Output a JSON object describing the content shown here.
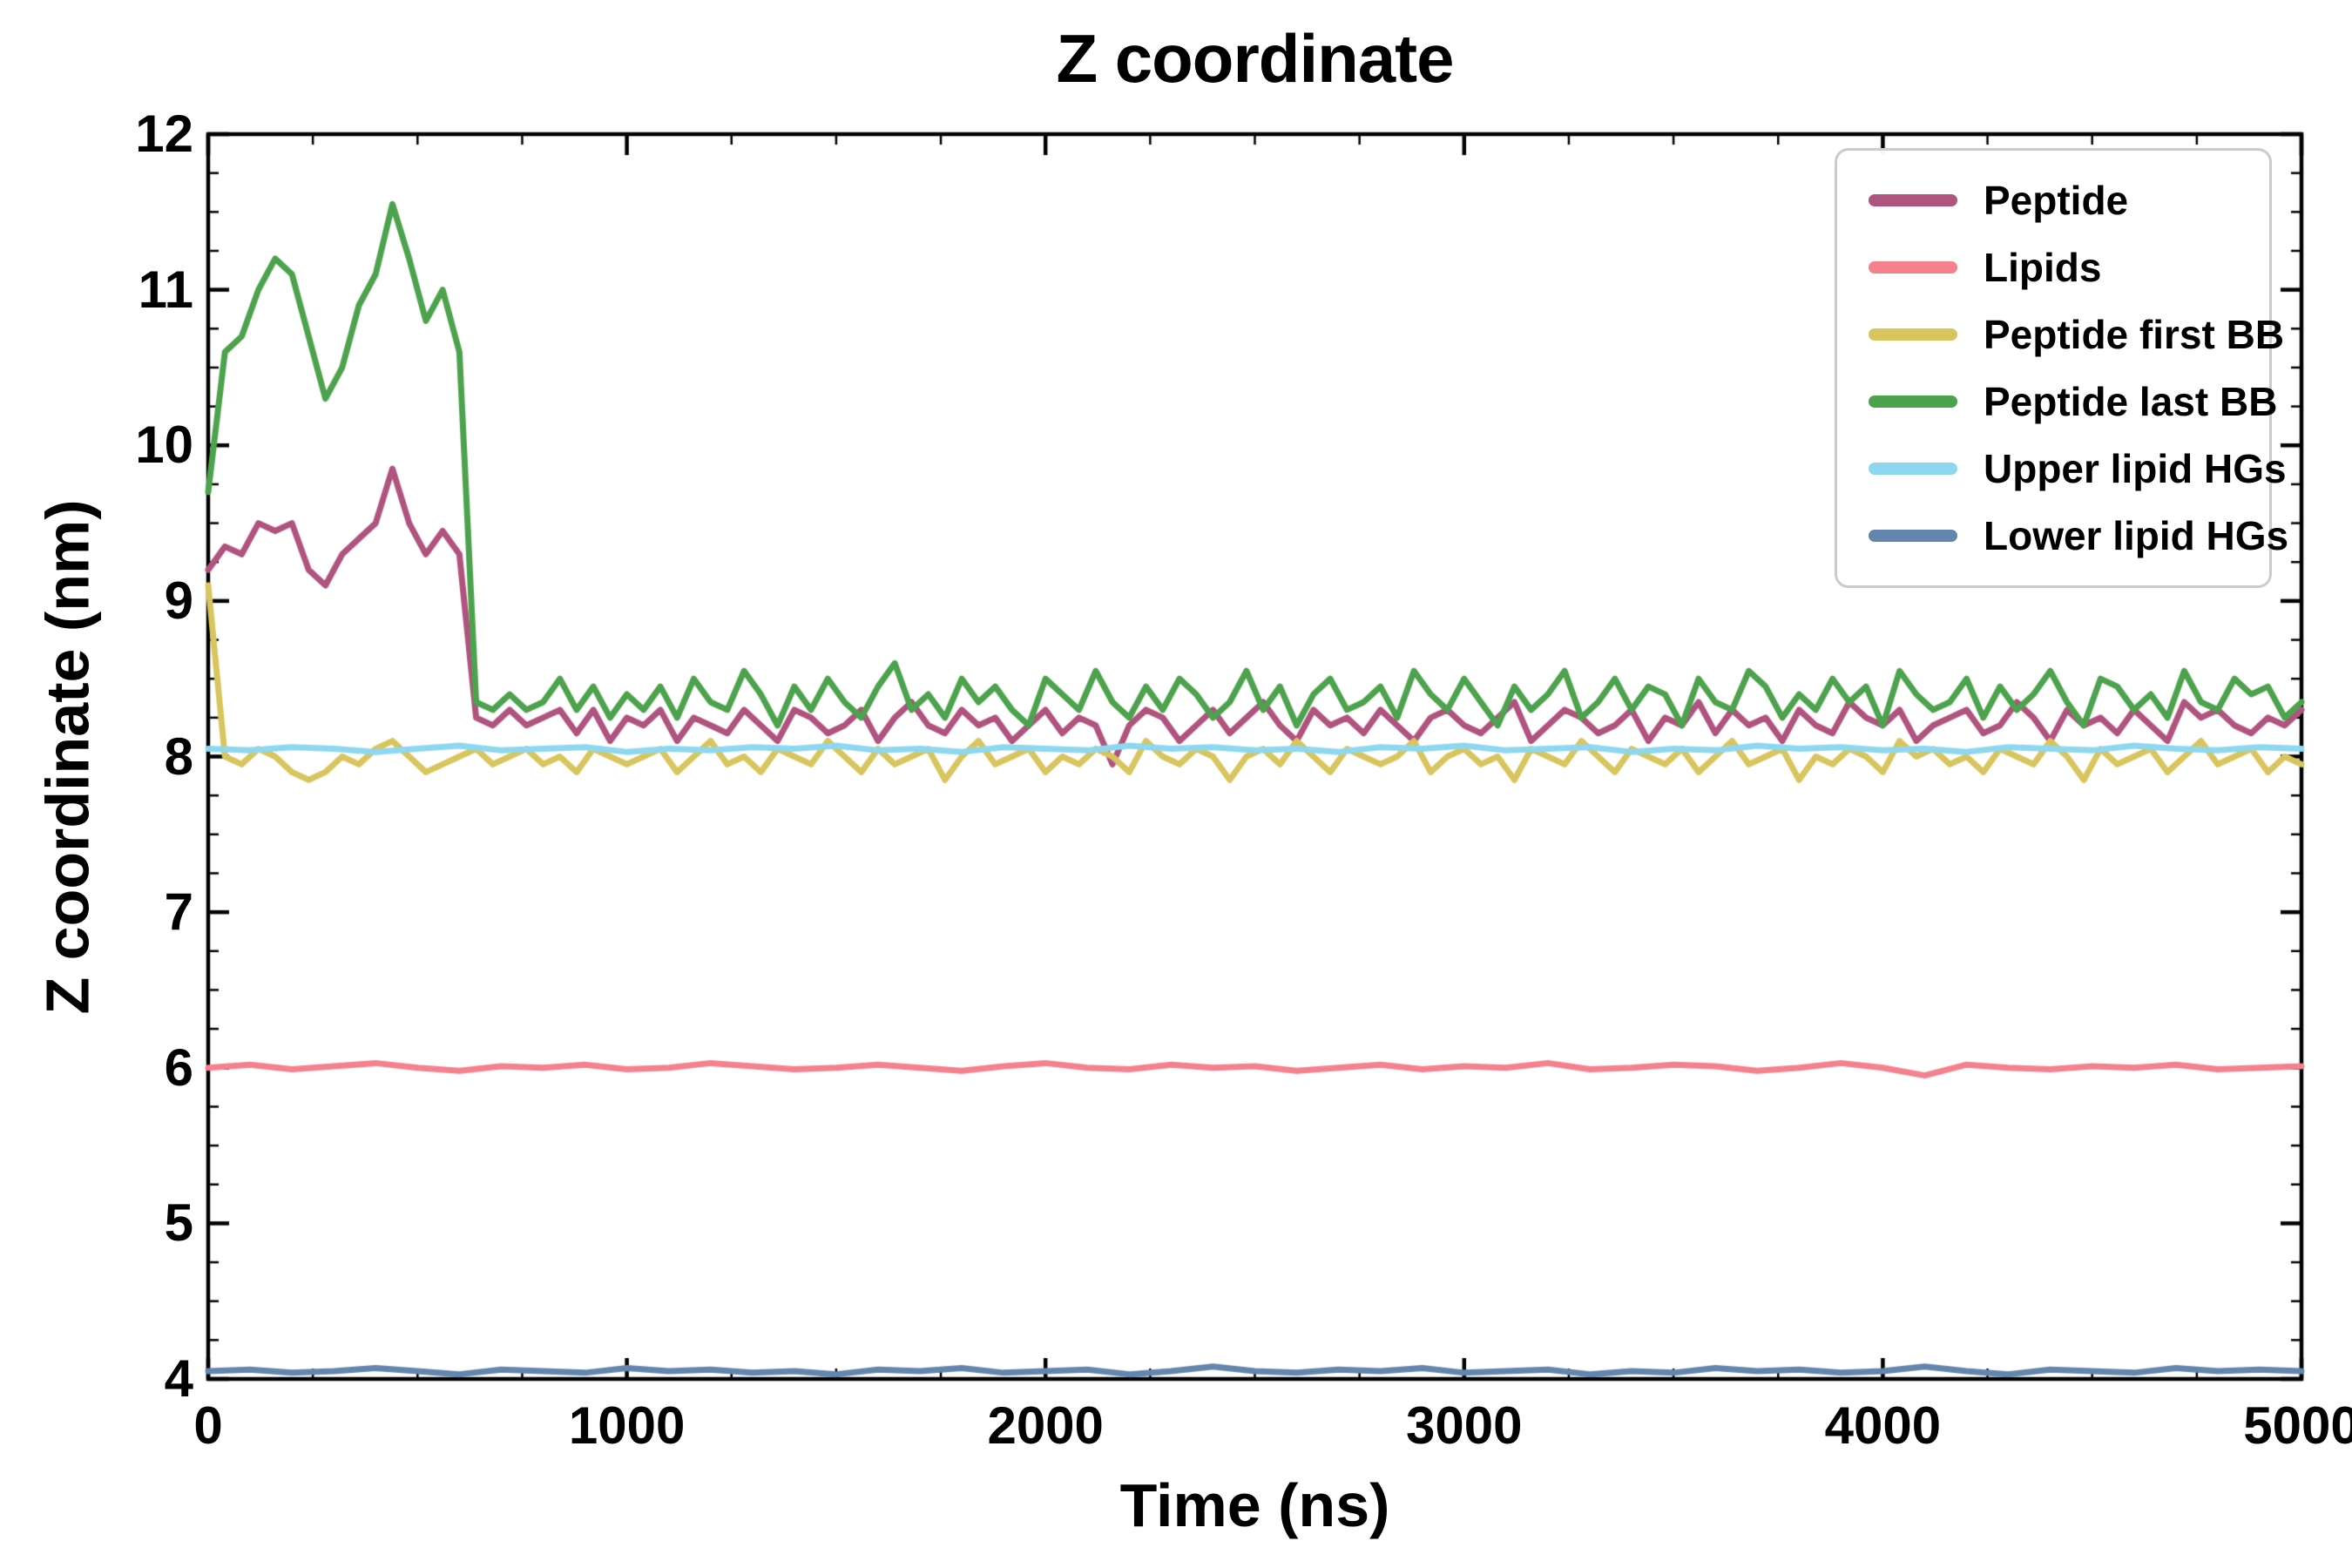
{
  "figure": {
    "title": "Z coordinate",
    "xlabel": "Time (ns)",
    "ylabel": "Z coordinate (nm)",
    "background": "#ffffff",
    "axis_color": "#000000"
  },
  "chart_data": {
    "type": "line",
    "title": "Z coordinate",
    "xlabel": "Time (ns)",
    "ylabel": "Z coordinate (nm)",
    "xlim": [
      0,
      5000
    ],
    "ylim": [
      4,
      12
    ],
    "x_ticks": [
      0,
      1000,
      2000,
      3000,
      4000,
      5000
    ],
    "y_ticks": [
      4,
      5,
      6,
      7,
      8,
      9,
      10,
      11,
      12
    ],
    "x_minor_step": 250,
    "y_minor_step": 0.25,
    "grid": false,
    "legend_position": "upper right",
    "series": [
      {
        "name": "Peptide",
        "color": "#b0537f",
        "linewidth": 7,
        "x_start": 0,
        "x_step": 40,
        "y": [
          9.2,
          9.35,
          9.3,
          9.5,
          9.45,
          9.5,
          9.2,
          9.1,
          9.3,
          9.4,
          9.5,
          9.85,
          9.5,
          9.3,
          9.45,
          9.3,
          8.25,
          8.2,
          8.3,
          8.2,
          8.25,
          8.3,
          8.15,
          8.3,
          8.1,
          8.25,
          8.2,
          8.3,
          8.1,
          8.25,
          8.2,
          8.15,
          8.3,
          8.2,
          8.1,
          8.3,
          8.25,
          8.15,
          8.2,
          8.3,
          8.1,
          8.25,
          8.35,
          8.2,
          8.15,
          8.3,
          8.2,
          8.25,
          8.1,
          8.2,
          8.3,
          8.15,
          8.25,
          8.2,
          7.95,
          8.2,
          8.3,
          8.25,
          8.1,
          8.2,
          8.3,
          8.15,
          8.25,
          8.35,
          8.2,
          8.1,
          8.3,
          8.2,
          8.25,
          8.15,
          8.3,
          8.2,
          8.1,
          8.25,
          8.3,
          8.2,
          8.15,
          8.25,
          8.35,
          8.1,
          8.2,
          8.3,
          8.25,
          8.15,
          8.2,
          8.3,
          8.1,
          8.25,
          8.2,
          8.35,
          8.15,
          8.3,
          8.2,
          8.25,
          8.1,
          8.3,
          8.2,
          8.15,
          8.35,
          8.25,
          8.2,
          8.3,
          8.1,
          8.2,
          8.25,
          8.3,
          8.15,
          8.2,
          8.35,
          8.25,
          8.1,
          8.3,
          8.2,
          8.25,
          8.15,
          8.3,
          8.2,
          8.1,
          8.35,
          8.25,
          8.3,
          8.2,
          8.15,
          8.25,
          8.2,
          8.3
        ]
      },
      {
        "name": "Lipids",
        "color": "#f4818d",
        "linewidth": 7,
        "x_start": 0,
        "x_step": 100,
        "y": [
          6.0,
          6.02,
          5.99,
          6.01,
          6.03,
          6.0,
          5.98,
          6.01,
          6.0,
          6.02,
          5.99,
          6.0,
          6.03,
          6.01,
          5.99,
          6.0,
          6.02,
          6.0,
          5.98,
          6.01,
          6.03,
          6.0,
          5.99,
          6.02,
          6.0,
          6.01,
          5.98,
          6.0,
          6.02,
          5.99,
          6.01,
          6.0,
          6.03,
          5.99,
          6.0,
          6.02,
          6.01,
          5.98,
          6.0,
          6.03,
          6.0,
          5.95,
          6.02,
          6.0,
          5.99,
          6.01,
          6.0,
          6.02,
          5.99,
          6.0,
          6.01
        ]
      },
      {
        "name": "Peptide first BB",
        "color": "#d9c55e",
        "linewidth": 7,
        "x_start": 0,
        "x_step": 40,
        "y": [
          9.1,
          8.0,
          7.95,
          8.05,
          8.0,
          7.9,
          7.85,
          7.9,
          8.0,
          7.95,
          8.05,
          8.1,
          8.0,
          7.9,
          7.95,
          8.0,
          8.05,
          7.95,
          8.0,
          8.05,
          7.95,
          8.0,
          7.9,
          8.05,
          8.0,
          7.95,
          8.0,
          8.05,
          7.9,
          8.0,
          8.1,
          7.95,
          8.0,
          7.9,
          8.05,
          8.0,
          7.95,
          8.1,
          8.0,
          7.9,
          8.05,
          7.95,
          8.0,
          8.05,
          7.85,
          8.0,
          8.1,
          7.95,
          8.0,
          8.05,
          7.9,
          8.0,
          7.95,
          8.05,
          8.0,
          7.9,
          8.1,
          8.0,
          7.95,
          8.05,
          8.0,
          7.85,
          8.0,
          8.05,
          7.95,
          8.1,
          8.0,
          7.9,
          8.05,
          8.0,
          7.95,
          8.0,
          8.1,
          7.9,
          8.0,
          8.05,
          7.95,
          8.0,
          7.85,
          8.05,
          8.0,
          7.95,
          8.1,
          8.0,
          7.9,
          8.05,
          8.0,
          7.95,
          8.05,
          7.9,
          8.0,
          8.1,
          7.95,
          8.0,
          8.05,
          7.85,
          8.0,
          7.95,
          8.05,
          8.0,
          7.9,
          8.1,
          8.0,
          8.05,
          7.95,
          8.0,
          7.9,
          8.05,
          8.0,
          7.95,
          8.1,
          8.0,
          7.85,
          8.05,
          7.95,
          8.0,
          8.05,
          7.9,
          8.0,
          8.1,
          7.95,
          8.0,
          8.05,
          7.9,
          8.0,
          7.95
        ]
      },
      {
        "name": "Peptide last BB",
        "color": "#4da24d",
        "linewidth": 7,
        "x_start": 0,
        "x_step": 40,
        "y": [
          9.7,
          10.6,
          10.7,
          11.0,
          11.2,
          11.1,
          10.7,
          10.3,
          10.5,
          10.9,
          11.1,
          11.55,
          11.2,
          10.8,
          11.0,
          10.6,
          8.35,
          8.3,
          8.4,
          8.3,
          8.35,
          8.5,
          8.3,
          8.45,
          8.25,
          8.4,
          8.3,
          8.45,
          8.25,
          8.5,
          8.35,
          8.3,
          8.55,
          8.4,
          8.2,
          8.45,
          8.3,
          8.5,
          8.35,
          8.25,
          8.45,
          8.6,
          8.3,
          8.4,
          8.25,
          8.5,
          8.35,
          8.45,
          8.3,
          8.2,
          8.5,
          8.4,
          8.3,
          8.55,
          8.35,
          8.25,
          8.45,
          8.3,
          8.5,
          8.4,
          8.25,
          8.35,
          8.55,
          8.3,
          8.45,
          8.2,
          8.4,
          8.5,
          8.3,
          8.35,
          8.45,
          8.25,
          8.55,
          8.4,
          8.3,
          8.5,
          8.35,
          8.2,
          8.45,
          8.3,
          8.4,
          8.55,
          8.25,
          8.35,
          8.5,
          8.3,
          8.45,
          8.4,
          8.2,
          8.5,
          8.35,
          8.3,
          8.55,
          8.45,
          8.25,
          8.4,
          8.3,
          8.5,
          8.35,
          8.45,
          8.2,
          8.55,
          8.4,
          8.3,
          8.35,
          8.5,
          8.25,
          8.45,
          8.3,
          8.4,
          8.55,
          8.35,
          8.2,
          8.5,
          8.45,
          8.3,
          8.4,
          8.25,
          8.55,
          8.35,
          8.3,
          8.5,
          8.4,
          8.45,
          8.25,
          8.35
        ]
      },
      {
        "name": "Upper lipid HGs",
        "color": "#8dd8f0",
        "linewidth": 7,
        "x_start": 0,
        "x_step": 100,
        "y": [
          8.05,
          8.04,
          8.06,
          8.05,
          8.03,
          8.05,
          8.07,
          8.04,
          8.05,
          8.06,
          8.03,
          8.05,
          8.04,
          8.06,
          8.05,
          8.07,
          8.04,
          8.05,
          8.03,
          8.06,
          8.05,
          8.04,
          8.07,
          8.05,
          8.06,
          8.04,
          8.05,
          8.03,
          8.06,
          8.05,
          8.07,
          8.04,
          8.05,
          8.06,
          8.03,
          8.05,
          8.04,
          8.07,
          8.05,
          8.06,
          8.04,
          8.05,
          8.03,
          8.06,
          8.05,
          8.04,
          8.07,
          8.05,
          8.04,
          8.06,
          8.05
        ]
      },
      {
        "name": "Lower lipid HGs",
        "color": "#6286ad",
        "linewidth": 7,
        "x_start": 0,
        "x_step": 100,
        "y": [
          4.05,
          4.06,
          4.04,
          4.05,
          4.07,
          4.05,
          4.03,
          4.06,
          4.05,
          4.04,
          4.07,
          4.05,
          4.06,
          4.04,
          4.05,
          4.03,
          4.06,
          4.05,
          4.07,
          4.04,
          4.05,
          4.06,
          4.03,
          4.05,
          4.08,
          4.05,
          4.04,
          4.06,
          4.05,
          4.07,
          4.04,
          4.05,
          4.06,
          4.03,
          4.05,
          4.04,
          4.07,
          4.05,
          4.06,
          4.04,
          4.05,
          4.08,
          4.05,
          4.03,
          4.06,
          4.05,
          4.04,
          4.07,
          4.05,
          4.06,
          4.05
        ]
      }
    ]
  }
}
